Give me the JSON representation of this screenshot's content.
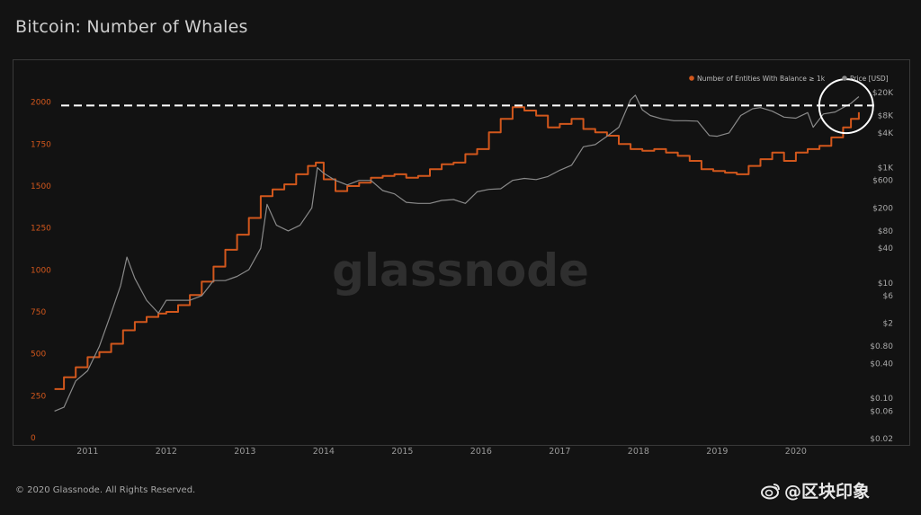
{
  "page": {
    "title": "Bitcoin: Number of Whales"
  },
  "footer": {
    "copyright": "© 2020 Glassnode. All Rights Reserved."
  },
  "watermark": {
    "text": "glassnode",
    "overlay_handle": "@区块印象"
  },
  "colors": {
    "whales": "#d2571c",
    "price": "#8a8a8a",
    "background": "#131313",
    "dashed_line": "#ffffff",
    "circle": "#ffffff"
  },
  "icons": {
    "weibo": "weibo-eye-icon"
  },
  "chart_data": {
    "type": "line",
    "title": "Bitcoin: Number of Whales",
    "legend_placement": "top-right",
    "legend": [
      {
        "label": "Number of Entities With Balance ≥ 1k",
        "color": "#d2571c"
      },
      {
        "label": "Price [USD]",
        "color": "#8a8a8a"
      }
    ],
    "x_axis": {
      "ticks": [
        "2011",
        "2012",
        "2013",
        "2014",
        "2015",
        "2016",
        "2017",
        "2018",
        "2019",
        "2020"
      ],
      "range": [
        2010.55,
        2020.95
      ]
    },
    "y_left": {
      "ticks": [
        "0",
        "250",
        "500",
        "750",
        "1000",
        "1250",
        "1500",
        "1750",
        "2000"
      ],
      "range": [
        0,
        2100
      ]
    },
    "y_right": {
      "scale": "log",
      "ticks": [
        {
          "label": "$0.02",
          "value": 0.02
        },
        {
          "label": "$0.06",
          "value": 0.06
        },
        {
          "label": "$0.10",
          "value": 0.1
        },
        {
          "label": "$0.40",
          "value": 0.4
        },
        {
          "label": "$0.80",
          "value": 0.8
        },
        {
          "label": "$2",
          "value": 2
        },
        {
          "label": "$6",
          "value": 6
        },
        {
          "label": "$10",
          "value": 10
        },
        {
          "label": "$40",
          "value": 40
        },
        {
          "label": "$80",
          "value": 80
        },
        {
          "label": "$200",
          "value": 200
        },
        {
          "label": "$600",
          "value": 600
        },
        {
          "label": "$1K",
          "value": 1000
        },
        {
          "label": "$4K",
          "value": 4000
        },
        {
          "label": "$8K",
          "value": 8000
        },
        {
          "label": "$20K",
          "value": 20000
        }
      ]
    },
    "series": [
      {
        "name": "Number of Entities With Balance ≥ 1k",
        "axis": "left",
        "x": [
          2010.58,
          2010.7,
          2010.85,
          2011.0,
          2011.15,
          2011.3,
          2011.45,
          2011.6,
          2011.75,
          2011.9,
          2012.0,
          2012.15,
          2012.3,
          2012.45,
          2012.6,
          2012.75,
          2012.9,
          2013.05,
          2013.2,
          2013.35,
          2013.5,
          2013.65,
          2013.8,
          2013.9,
          2014.0,
          2014.15,
          2014.3,
          2014.45,
          2014.6,
          2014.75,
          2014.9,
          2015.05,
          2015.2,
          2015.35,
          2015.5,
          2015.65,
          2015.8,
          2015.95,
          2016.1,
          2016.25,
          2016.4,
          2016.55,
          2016.7,
          2016.85,
          2017.0,
          2017.15,
          2017.3,
          2017.45,
          2017.6,
          2017.75,
          2017.9,
          2018.05,
          2018.2,
          2018.35,
          2018.5,
          2018.65,
          2018.8,
          2018.95,
          2019.1,
          2019.25,
          2019.4,
          2019.55,
          2019.7,
          2019.85,
          2020.0,
          2020.15,
          2020.3,
          2020.45,
          2020.6,
          2020.7,
          2020.8
        ],
        "y": [
          290,
          360,
          420,
          480,
          510,
          560,
          640,
          690,
          720,
          740,
          750,
          790,
          850,
          930,
          1020,
          1120,
          1210,
          1310,
          1440,
          1480,
          1510,
          1570,
          1620,
          1640,
          1540,
          1470,
          1500,
          1520,
          1550,
          1560,
          1570,
          1550,
          1560,
          1600,
          1630,
          1640,
          1690,
          1720,
          1820,
          1900,
          1970,
          1950,
          1920,
          1850,
          1870,
          1900,
          1840,
          1820,
          1800,
          1750,
          1720,
          1710,
          1720,
          1700,
          1680,
          1650,
          1600,
          1590,
          1580,
          1570,
          1620,
          1660,
          1700,
          1650,
          1700,
          1720,
          1740,
          1790,
          1850,
          1900,
          1940
        ]
      },
      {
        "name": "Price [USD]",
        "axis": "right",
        "x": [
          2010.58,
          2010.7,
          2010.85,
          2011.0,
          2011.15,
          2011.3,
          2011.42,
          2011.5,
          2011.6,
          2011.75,
          2011.9,
          2012.0,
          2012.15,
          2012.3,
          2012.45,
          2012.6,
          2012.75,
          2012.9,
          2013.05,
          2013.2,
          2013.28,
          2013.4,
          2013.55,
          2013.7,
          2013.85,
          2013.92,
          2014.0,
          2014.15,
          2014.3,
          2014.45,
          2014.6,
          2014.75,
          2014.9,
          2015.05,
          2015.2,
          2015.35,
          2015.5,
          2015.65,
          2015.8,
          2015.95,
          2016.1,
          2016.25,
          2016.4,
          2016.55,
          2016.7,
          2016.85,
          2017.0,
          2017.15,
          2017.3,
          2017.45,
          2017.6,
          2017.75,
          2017.9,
          2017.96,
          2018.05,
          2018.15,
          2018.3,
          2018.45,
          2018.6,
          2018.75,
          2018.9,
          2019.0,
          2019.15,
          2019.3,
          2019.45,
          2019.55,
          2019.7,
          2019.85,
          2020.0,
          2020.15,
          2020.22,
          2020.35,
          2020.5,
          2020.6,
          2020.7,
          2020.8
        ],
        "y": [
          0.06,
          0.07,
          0.2,
          0.3,
          0.8,
          3,
          9,
          28,
          12,
          5,
          3,
          5,
          5,
          5,
          6,
          11,
          11,
          13,
          17,
          40,
          230,
          100,
          80,
          100,
          200,
          1000,
          800,
          600,
          500,
          600,
          600,
          400,
          350,
          250,
          240,
          240,
          270,
          280,
          240,
          380,
          420,
          430,
          600,
          650,
          620,
          700,
          900,
          1100,
          2300,
          2500,
          3500,
          5000,
          15000,
          18000,
          10000,
          8000,
          7000,
          6500,
          6500,
          6400,
          3600,
          3500,
          4000,
          8000,
          10500,
          11000,
          9500,
          7500,
          7200,
          9000,
          5000,
          8500,
          9200,
          11000,
          13000,
          17000
        ]
      }
    ],
    "annotations": [
      {
        "kind": "dashed_horizontal_line",
        "axis": "left",
        "y": 1980
      },
      {
        "kind": "circle",
        "x": 2020.65,
        "axis": "left",
        "y": 1960
      }
    ]
  }
}
